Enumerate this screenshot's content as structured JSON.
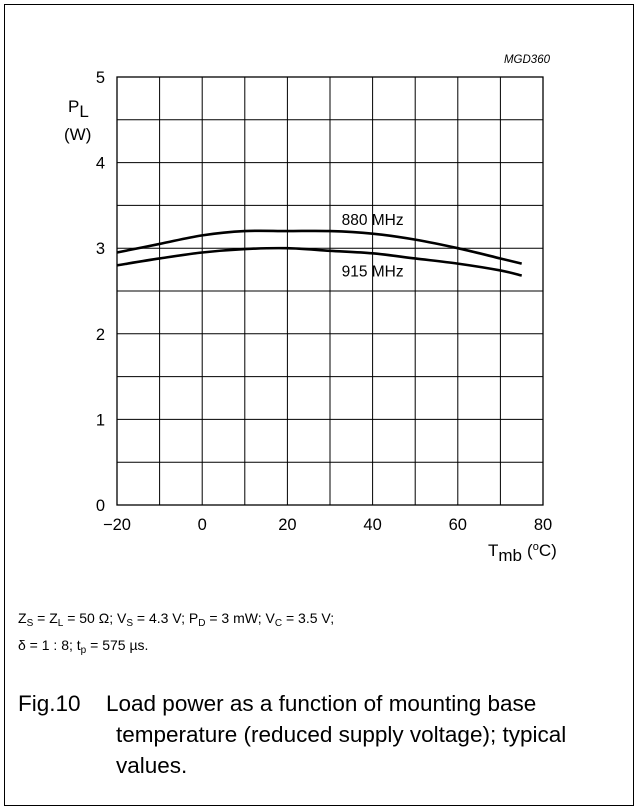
{
  "chart_data": {
    "type": "line",
    "code": "MGD360",
    "y_axis": {
      "label_main": "P",
      "label_sub": "L",
      "unit": "(W)",
      "range": [
        0,
        5
      ],
      "ticks": [
        "0",
        "1",
        "2",
        "3",
        "4",
        "5"
      ],
      "grid_step": 0.5
    },
    "x_axis": {
      "label_main": "T",
      "label_sub": "mb",
      "unit_open": "(",
      "unit_sup": "o",
      "unit_rest": "C)",
      "range": [
        -20,
        80
      ],
      "ticks": [
        "−20",
        "0",
        "20",
        "40",
        "60",
        "80"
      ],
      "grid_step": 10
    },
    "grid": true,
    "series": [
      {
        "name": "880 MHz",
        "x": [
          -20,
          -10,
          0,
          10,
          20,
          30,
          40,
          50,
          60,
          70,
          75
        ],
        "y": [
          2.95,
          3.05,
          3.15,
          3.2,
          3.2,
          3.2,
          3.17,
          3.1,
          3.0,
          2.88,
          2.82
        ]
      },
      {
        "name": "915 MHz",
        "x": [
          -20,
          -10,
          0,
          10,
          20,
          30,
          40,
          50,
          60,
          70,
          75
        ],
        "y": [
          2.8,
          2.88,
          2.95,
          2.99,
          3.0,
          2.97,
          2.94,
          2.88,
          2.82,
          2.74,
          2.68
        ]
      }
    ]
  },
  "conditions": {
    "line1": {
      "zs_main": "Z",
      "zs_sub": "S",
      "eq_zl": " = Z",
      "zl_sub": "L",
      "val1": " = 50 Ω; V",
      "vs_sub": "S",
      "val2": " = 4.3 V; P",
      "pd_sub": "D",
      "val3": " = 3 mW; V",
      "vc_sub": "C",
      "val4": " = 3.5 V;"
    },
    "line2": {
      "pre": "δ = 1 : 8; t",
      "tp_sub": "p",
      "post": " = 575 µs."
    }
  },
  "caption": {
    "number": "Fig.10",
    "text": "Load power as a function of mounting base temperature (reduced supply voltage); typical values."
  }
}
